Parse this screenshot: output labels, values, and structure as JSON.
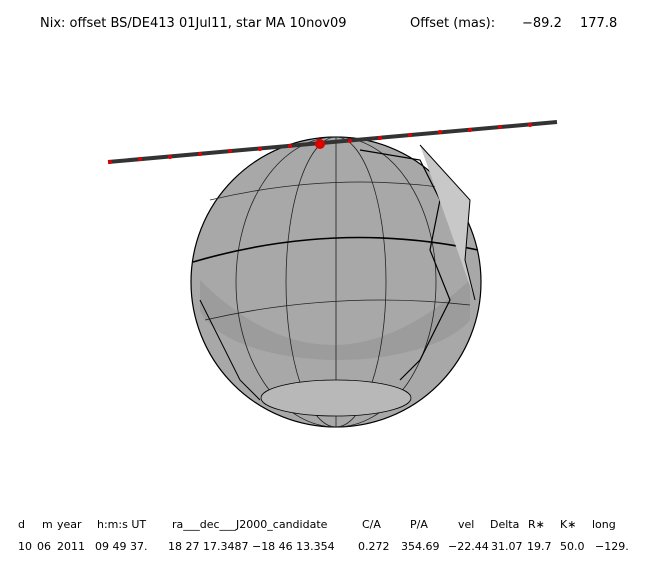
{
  "header": {
    "title": "Nix: offset BS/DE413 01Jul11, star MA 10nov09",
    "offset_label": "Offset (mas):",
    "offset_values": [
      "−89.2",
      "177.8"
    ]
  },
  "table": {
    "columns": [
      "d",
      "m",
      "year",
      "h:m:s UT",
      "ra___dec___J2000_candidate",
      "C/A",
      "P/A",
      "vel",
      "Delta",
      "R∗",
      "K∗",
      "long"
    ],
    "rows": [
      [
        "10",
        "06",
        "2011",
        "09 49 37.",
        "18 27 17.3487 −18 46  13.354",
        "0.272",
        "354.69",
        "−22.44",
        "31.07",
        "19.7",
        "50.0",
        "−129."
      ]
    ]
  }
}
